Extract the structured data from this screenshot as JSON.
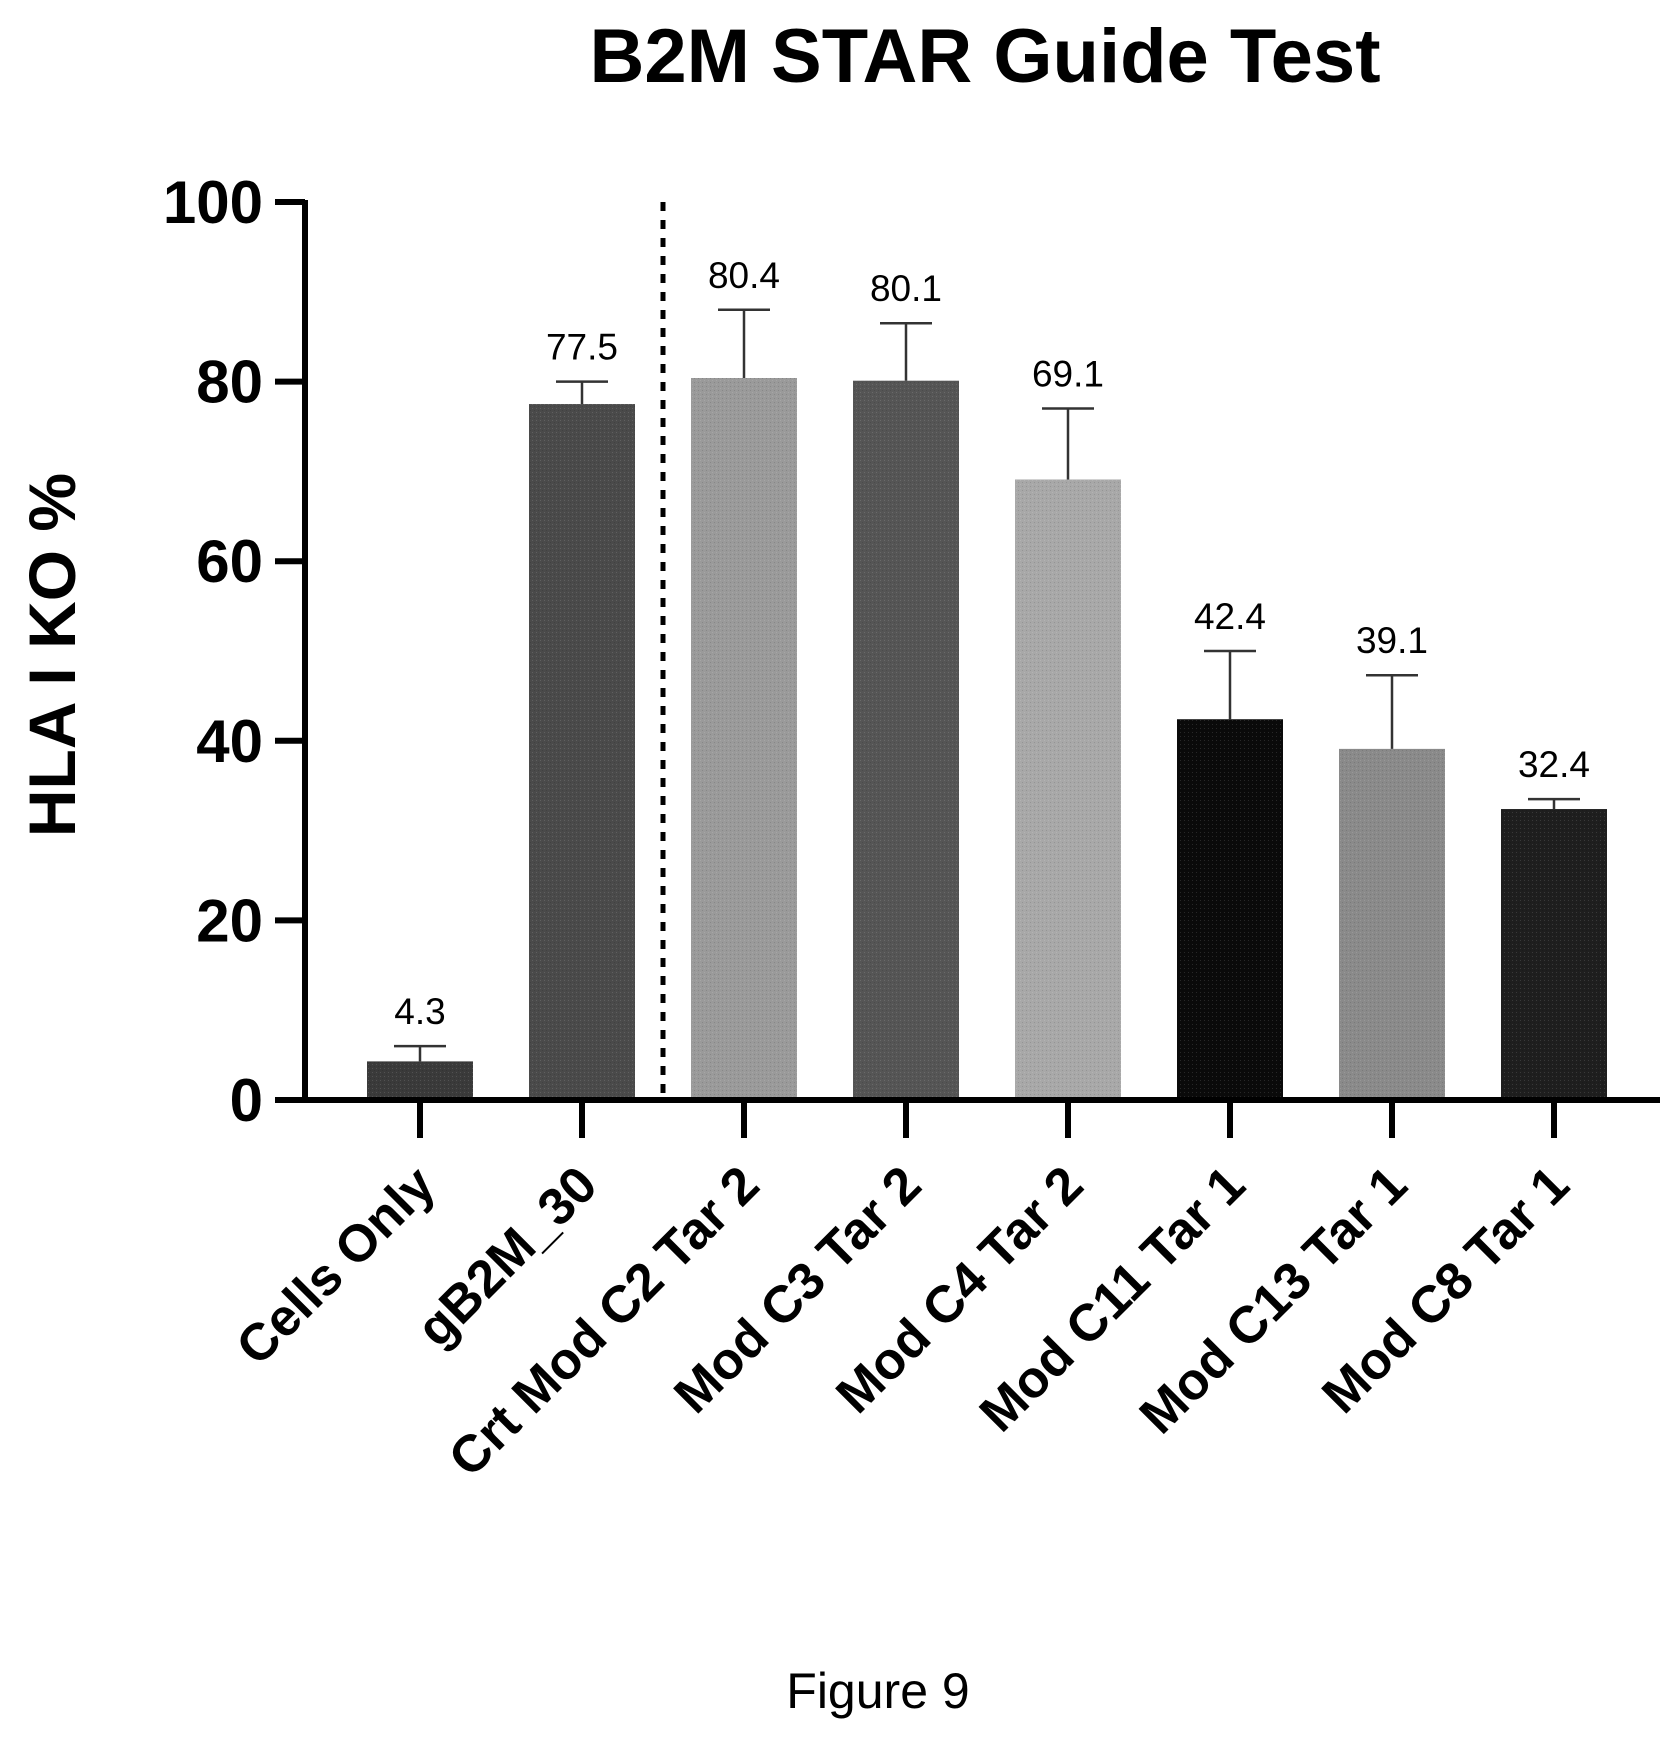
{
  "chart_data": {
    "type": "bar",
    "title": "B2M STAR Guide Test",
    "ylabel": "HLA I KO %",
    "xlabel": "",
    "ylim": [
      0,
      100
    ],
    "yticks": [
      0,
      20,
      40,
      60,
      80,
      100
    ],
    "categories": [
      "Cells Only",
      "gB2M_30",
      "Crt Mod C2 Tar 2",
      "Mod C3 Tar 2",
      "Mod C4 Tar 2",
      "Mod C11 Tar 1",
      "Mod C13 Tar 1",
      "Mod C8 Tar 1"
    ],
    "values": [
      4.3,
      77.5,
      80.4,
      80.1,
      69.1,
      42.4,
      39.1,
      32.4
    ],
    "value_labels": [
      "4.3",
      "77.5",
      "80.4",
      "80.1",
      "69.1",
      "42.4",
      "39.1",
      "32.4"
    ],
    "error_upper": [
      6.0,
      80.0,
      88.0,
      86.5,
      77.0,
      50.0,
      47.3,
      33.5
    ],
    "bar_colors": [
      "#3a3a3a",
      "#4a4a4a",
      "#9a9a9a",
      "#555555",
      "#a8a8a8",
      "#0a0a0a",
      "#8a8a8a",
      "#1e1e1e"
    ],
    "separator_after_index": 1,
    "grid": false,
    "legend": "none"
  },
  "caption": "Figure 9"
}
